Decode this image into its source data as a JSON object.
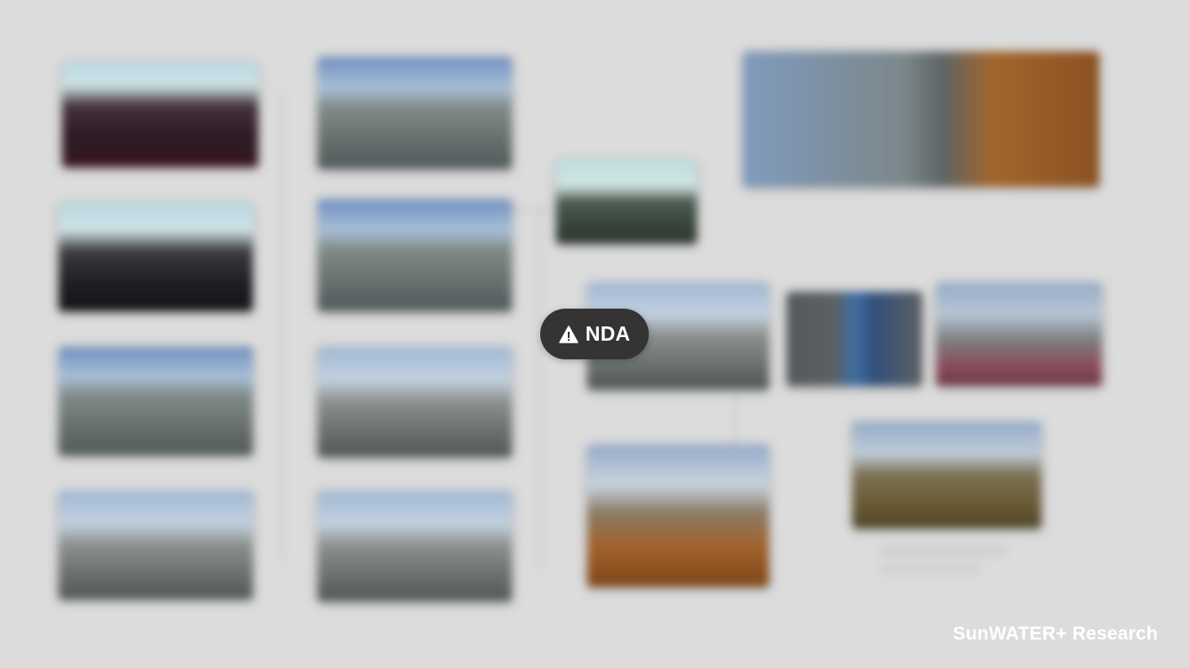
{
  "overlay": {
    "badge_label": "NDA",
    "badge_icon": "warning-triangle-icon",
    "brand_label": "SunWATER+ Research"
  },
  "colors": {
    "background": "#dcdcdc",
    "badge_background": "#343434",
    "badge_text": "#ffffff",
    "brand_text": "#ffffff"
  }
}
